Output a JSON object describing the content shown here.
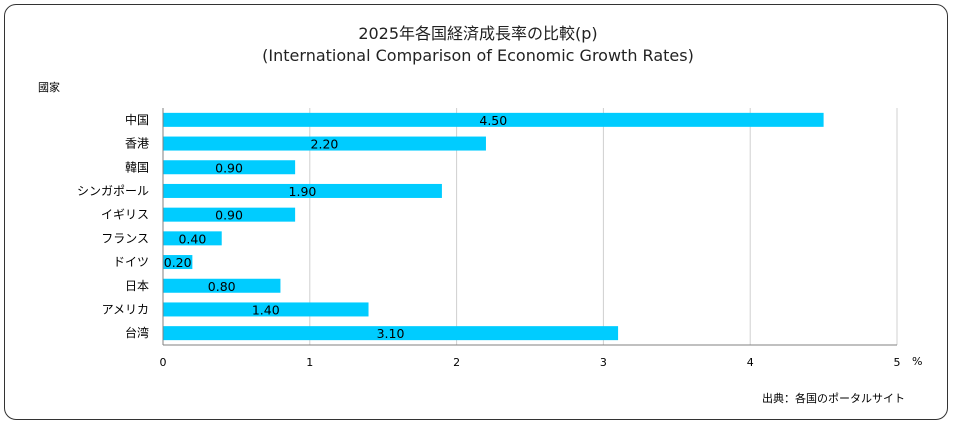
{
  "chart_data": {
    "type": "bar",
    "orientation": "horizontal",
    "title": "2025年各国経済成長率の比較(p)",
    "subtitle": "(International Comparison of Economic Growth Rates)",
    "ylabel": "國家",
    "unit": "%",
    "categories": [
      "中国",
      "香港",
      "韓国",
      "シンガポール",
      "イギリス",
      "フランス",
      "ドイツ",
      "日本",
      "アメリカ",
      "台湾"
    ],
    "values": [
      4.5,
      2.2,
      0.9,
      1.9,
      0.9,
      0.4,
      0.2,
      0.8,
      1.4,
      3.1
    ],
    "value_labels": [
      "4.50",
      "2.20",
      "0.90",
      "1.90",
      "0.90",
      "0.40",
      "0.20",
      "0.80",
      "1.40",
      "3.10"
    ],
    "xlim": [
      0,
      5
    ],
    "xticks": [
      "0",
      "1",
      "2",
      "3",
      "4",
      "5"
    ],
    "grid": true,
    "bar_color": "#00ccff",
    "source": "出典：各国のポータルサイト"
  }
}
